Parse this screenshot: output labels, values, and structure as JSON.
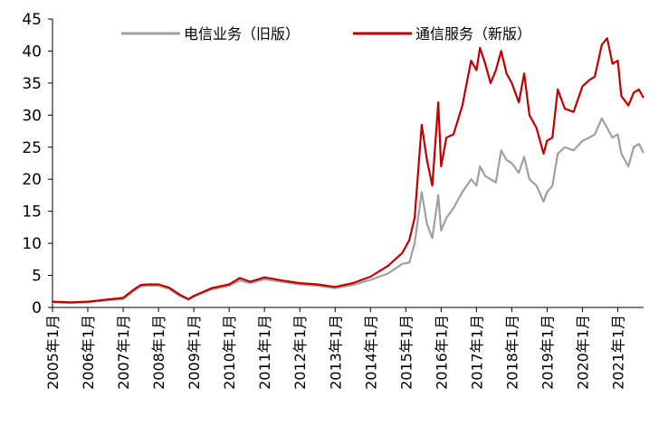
{
  "chart_data": {
    "type": "line",
    "title": "",
    "xlabel": "",
    "ylabel": "",
    "ylim": [
      0,
      45
    ],
    "y_ticks": [
      "0",
      "5",
      "10",
      "15",
      "20",
      "25",
      "30",
      "35",
      "40",
      "45"
    ],
    "x_ticks": [
      "2005年1月",
      "2006年1月",
      "2007年1月",
      "2008年1月",
      "2009年1月",
      "2010年1月",
      "2011年1月",
      "2012年1月",
      "2013年1月",
      "2014年1月",
      "2015年1月",
      "2016年1月",
      "2017年1月",
      "2018年1月",
      "2019年1月",
      "2020年1月",
      "2021年1月"
    ],
    "grid": false,
    "legend_position": "top",
    "x": [
      2005.0,
      2005.5,
      2006.0,
      2006.5,
      2007.0,
      2007.3,
      2007.5,
      2007.7,
      2008.0,
      2008.3,
      2008.6,
      2008.85,
      2009.0,
      2009.5,
      2010.0,
      2010.3,
      2010.6,
      2011.0,
      2011.5,
      2012.0,
      2012.5,
      2013.0,
      2013.5,
      2014.0,
      2014.5,
      2014.9,
      2015.1,
      2015.25,
      2015.45,
      2015.6,
      2015.75,
      2015.92,
      2016.0,
      2016.15,
      2016.35,
      2016.6,
      2016.85,
      2017.0,
      2017.1,
      2017.25,
      2017.4,
      2017.55,
      2017.7,
      2017.85,
      2018.0,
      2018.2,
      2018.35,
      2018.5,
      2018.7,
      2018.9,
      2019.0,
      2019.15,
      2019.3,
      2019.5,
      2019.75,
      2020.0,
      2020.2,
      2020.35,
      2020.55,
      2020.7,
      2020.85,
      2021.0,
      2021.1,
      2021.3,
      2021.45,
      2021.6,
      2021.72
    ],
    "series": [
      {
        "name": "电信业务（旧版）",
        "color": "#a0a0a0",
        "values": [
          0.8,
          0.7,
          0.8,
          1.1,
          1.3,
          2.6,
          3.3,
          3.4,
          3.4,
          2.9,
          1.8,
          1.2,
          1.7,
          2.8,
          3.4,
          4.2,
          3.8,
          4.4,
          4.0,
          3.6,
          3.4,
          3.0,
          3.5,
          4.3,
          5.3,
          6.8,
          7.0,
          10.0,
          18.0,
          13.0,
          10.8,
          17.5,
          12.0,
          14.0,
          15.5,
          18.0,
          20.0,
          19.0,
          22.0,
          20.5,
          20.0,
          19.5,
          24.5,
          23.0,
          22.5,
          21.0,
          23.5,
          20.0,
          19.0,
          16.5,
          18.0,
          19.0,
          24.0,
          25.0,
          24.5,
          26.0,
          26.5,
          27.0,
          29.5,
          28.0,
          26.5,
          27.0,
          24.0,
          22.0,
          25.0,
          25.5,
          24.2
        ]
      },
      {
        "name": "通信服务（新版）",
        "color": "#c00000",
        "values": [
          0.9,
          0.8,
          0.9,
          1.2,
          1.5,
          2.8,
          3.5,
          3.6,
          3.6,
          3.1,
          2.0,
          1.3,
          1.8,
          3.0,
          3.6,
          4.6,
          4.0,
          4.7,
          4.2,
          3.8,
          3.6,
          3.2,
          3.8,
          4.8,
          6.5,
          8.5,
          10.5,
          14.0,
          28.5,
          23.0,
          19.0,
          32.0,
          22.0,
          26.5,
          27.0,
          31.5,
          38.5,
          37.0,
          40.5,
          38.0,
          35.0,
          37.0,
          40.0,
          36.5,
          35.0,
          32.0,
          36.5,
          30.0,
          28.0,
          24.0,
          26.0,
          26.5,
          34.0,
          31.0,
          30.5,
          34.5,
          35.5,
          36.0,
          41.0,
          42.0,
          38.0,
          38.5,
          33.0,
          31.5,
          33.5,
          34.0,
          32.8
        ]
      }
    ]
  }
}
